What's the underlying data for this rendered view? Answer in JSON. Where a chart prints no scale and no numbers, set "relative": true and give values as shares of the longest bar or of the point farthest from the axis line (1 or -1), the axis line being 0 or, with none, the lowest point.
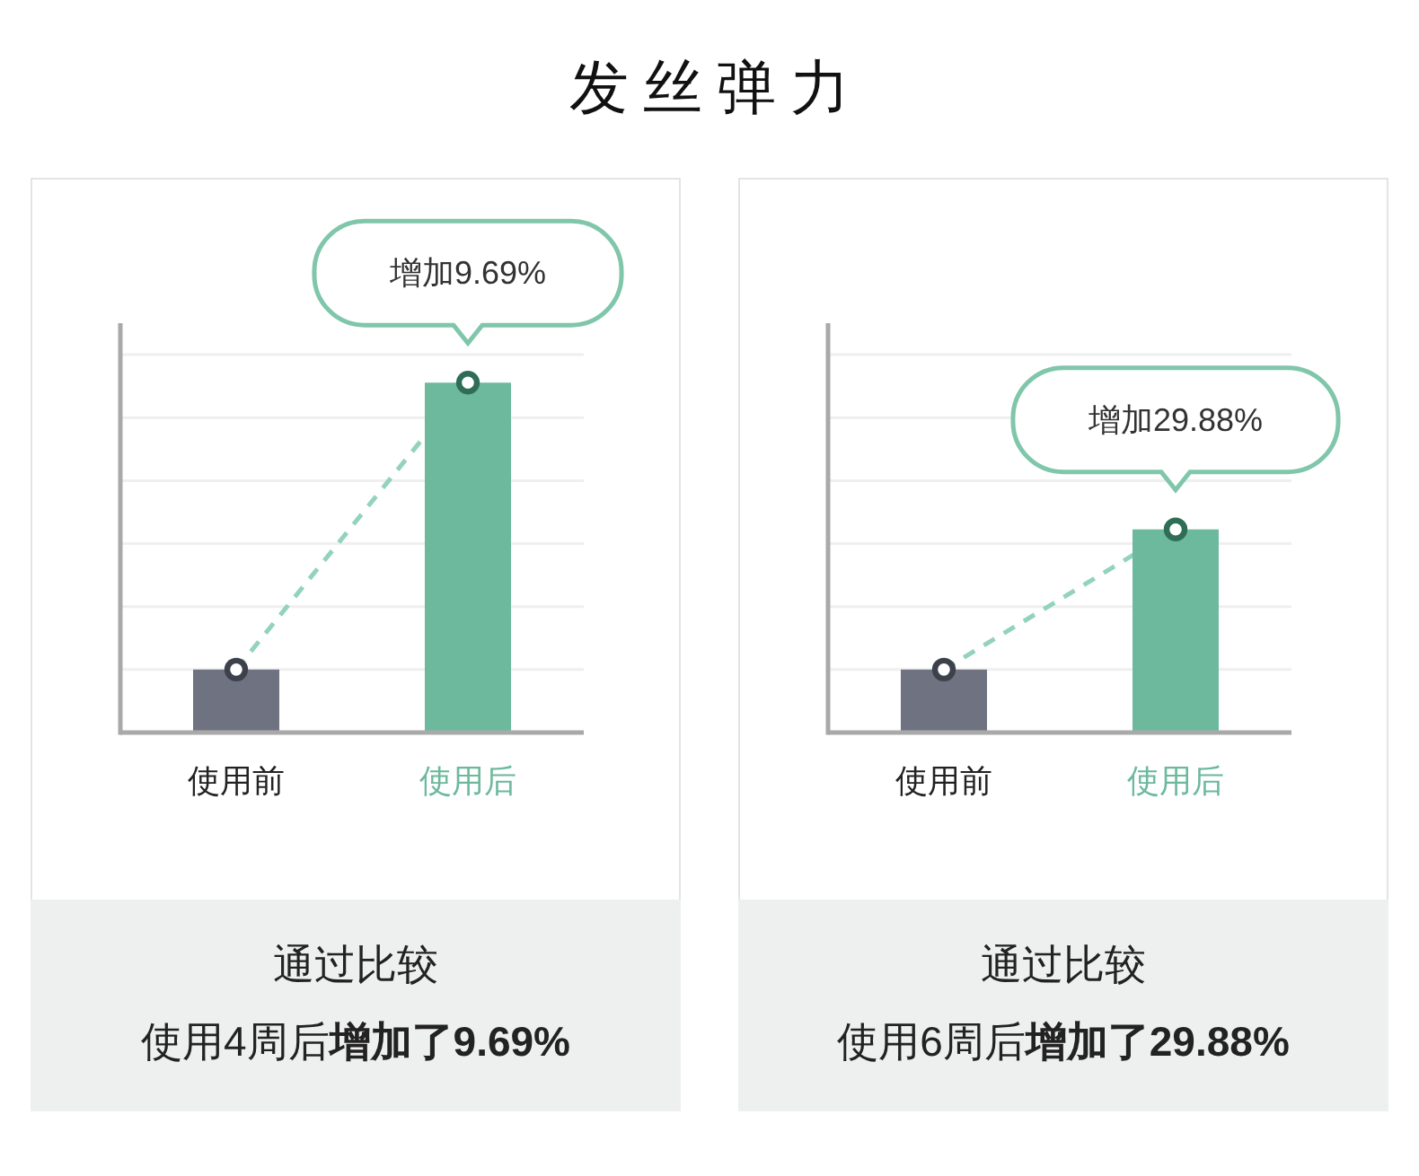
{
  "chart_data": [
    {
      "type": "bar",
      "title": "发丝弹力",
      "categories": [
        "使用前",
        "使用后"
      ],
      "relative": true,
      "grid": "y",
      "marker": "circle",
      "line_style": "dashed",
      "series": [
        {
          "values": [
            0.18,
            1
          ],
          "colors": [
            "#6f7281",
            "#6cb99d"
          ]
        },
        {
          "type": "line",
          "values": [
            0.18,
            1
          ],
          "color": "#93d3bb",
          "colors": [
            "#3c414c",
            "#2f6d57"
          ]
        }
      ],
      "annotations": [
        {
          "text": "增加9.69%",
          "x": "使用后",
          "y": 1
        },
        "通过比较",
        "使用4周后",
        "增加了9.69%"
      ]
    },
    {
      "type": "bar",
      "categories": [
        "使用前",
        "使用后"
      ],
      "relative": true,
      "grid": "y",
      "marker": "circle",
      "line_style": "dashed",
      "series": [
        {
          "values": [
            0.31,
            1
          ],
          "colors": [
            "#6f7281",
            "#6cb99d"
          ]
        },
        {
          "type": "line",
          "values": [
            0.31,
            1
          ],
          "color": "#93d3bb",
          "colors": [
            "#3c414c",
            "#2f6d57"
          ]
        }
      ],
      "annotations": [
        {
          "text": "增加29.88%",
          "x": "使用后",
          "y": 1
        },
        "通过比较",
        "使用6周后",
        "增加了29.88%"
      ]
    }
  ]
}
